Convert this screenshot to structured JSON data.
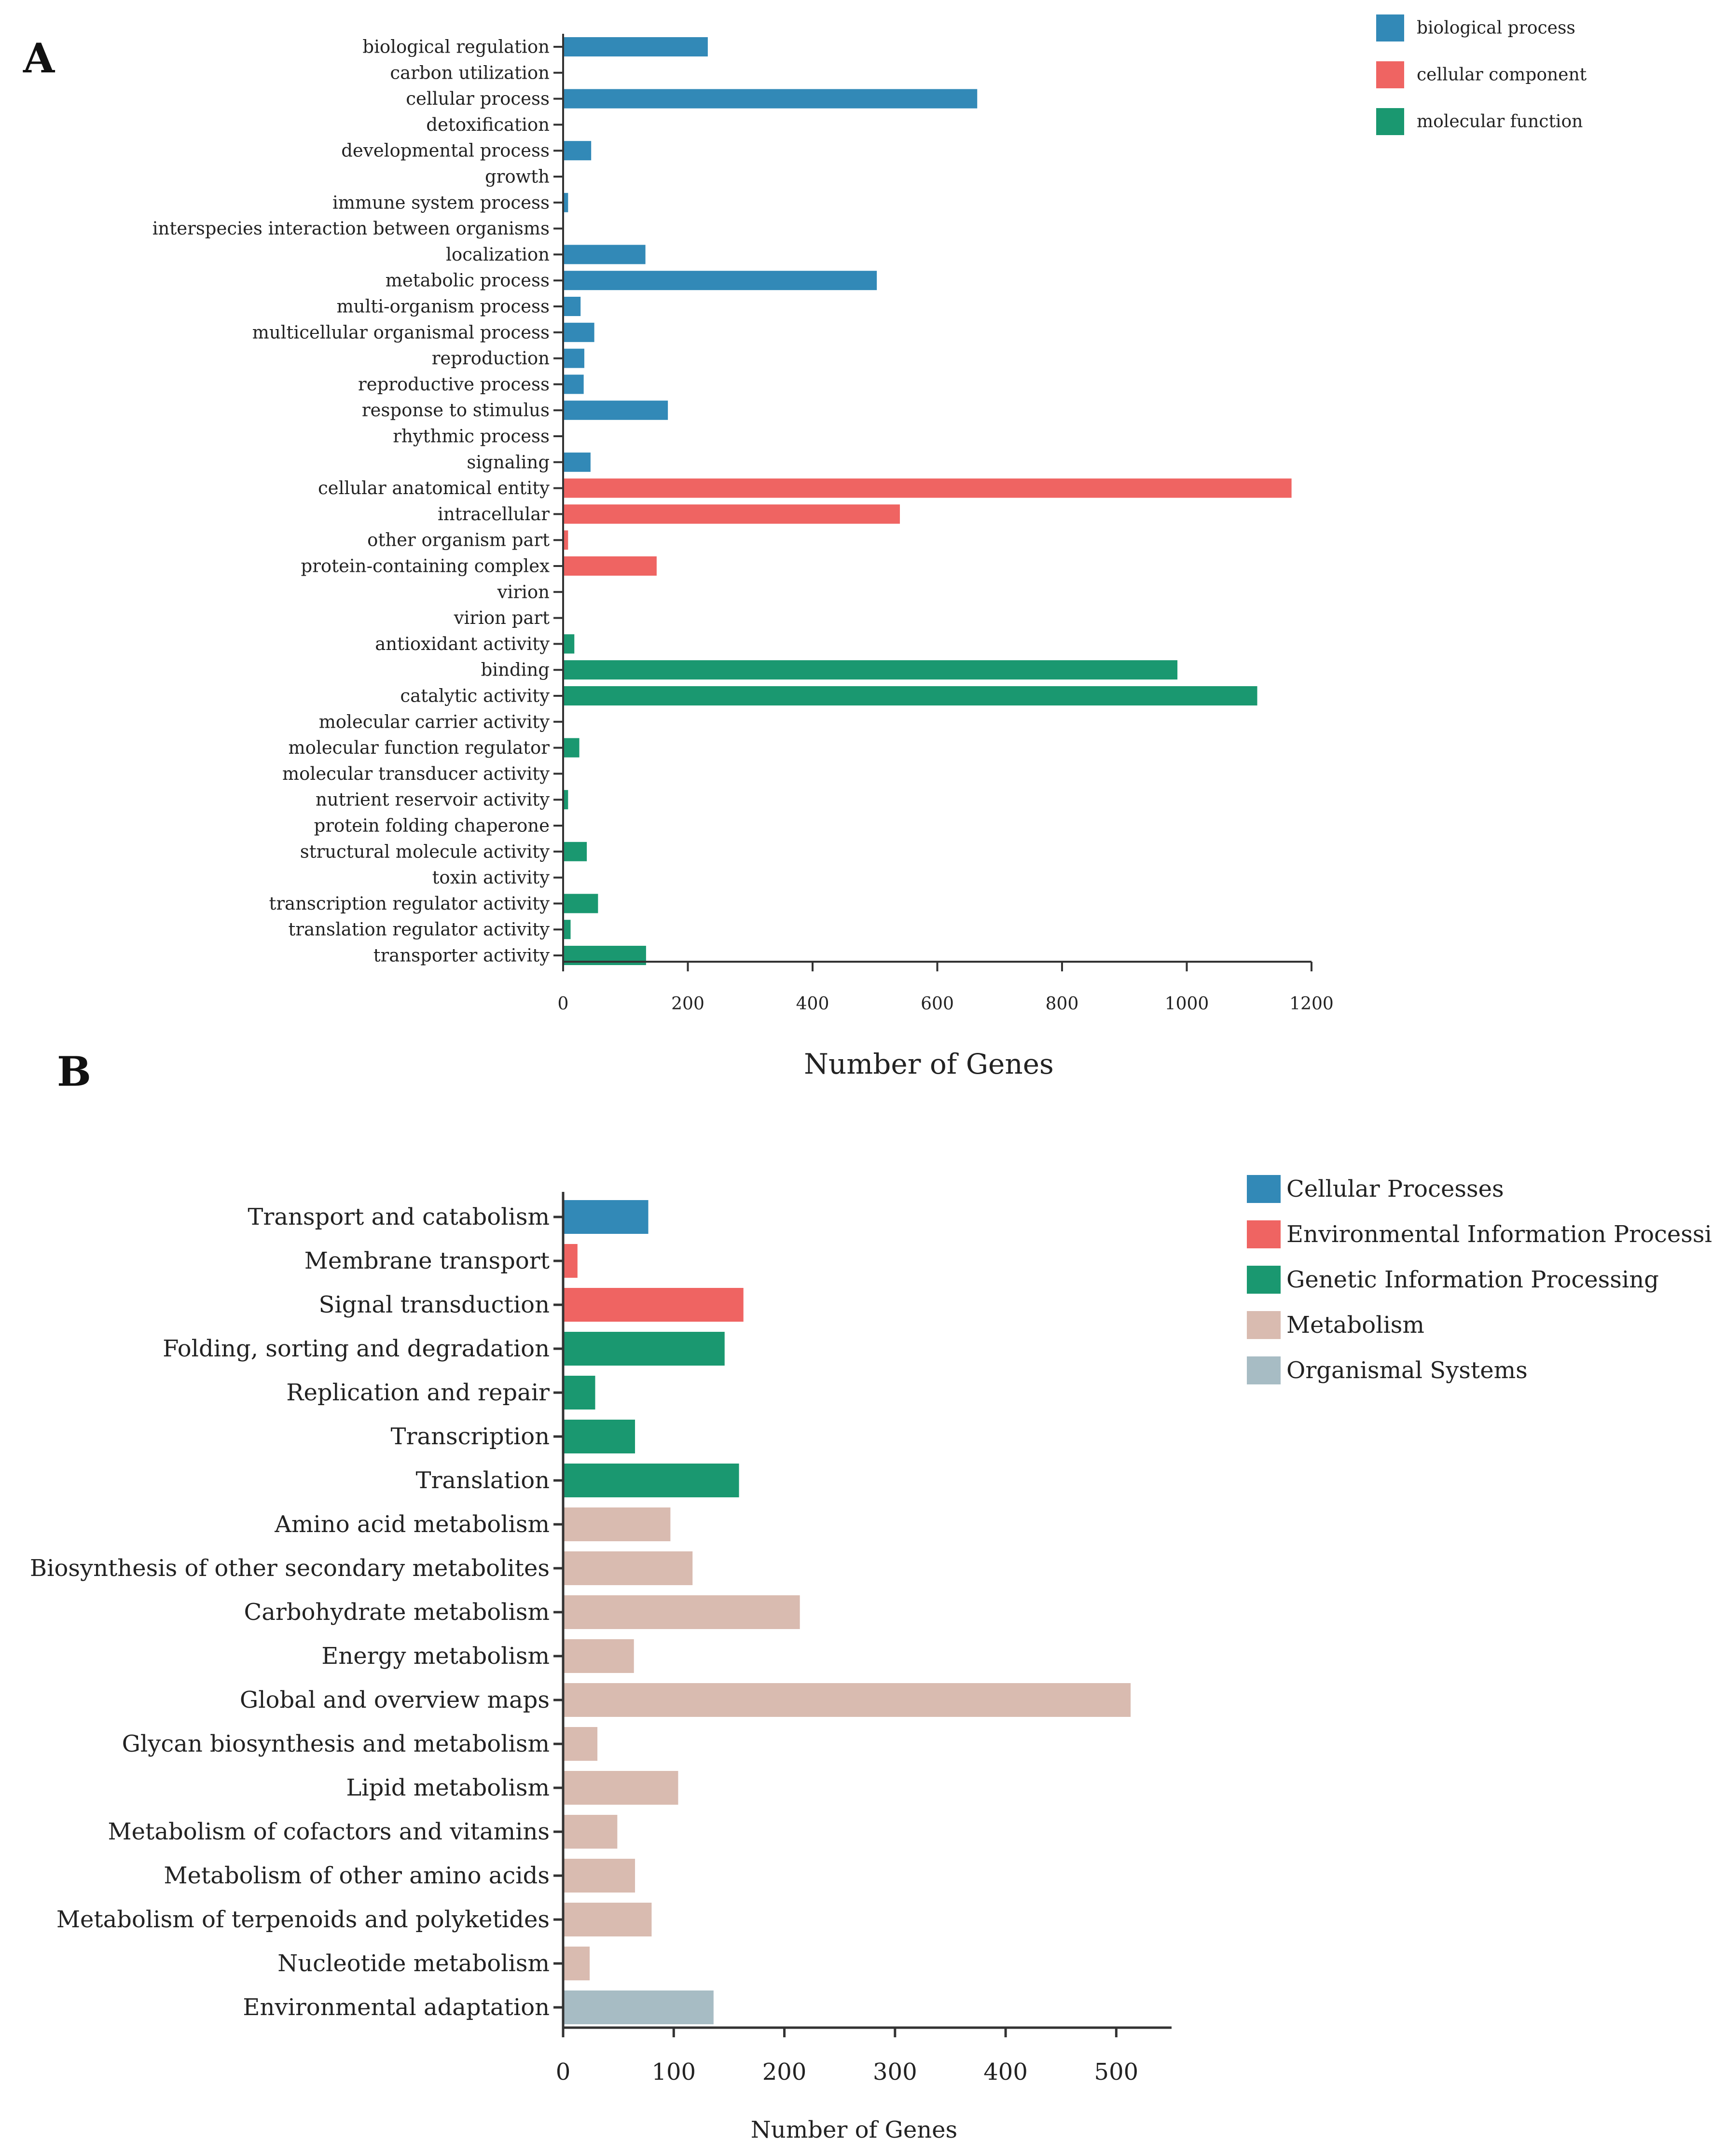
{
  "figure": {
    "panel_a_letter": "A",
    "panel_b_letter": "B"
  },
  "chart_data": [
    {
      "type": "bar",
      "orientation": "horizontal",
      "panel": "A",
      "title": "",
      "xlabel": "Number of Genes",
      "ylabel": "",
      "xlim": [
        0,
        1200
      ],
      "xticks": [
        0,
        200,
        400,
        600,
        800,
        1000,
        1200
      ],
      "legend_position": "top-right",
      "groups": [
        {
          "name": "biological process",
          "color": "#3289b7"
        },
        {
          "name": "cellular component",
          "color": "#ef6462"
        },
        {
          "name": "molecular function",
          "color": "#1a9870"
        }
      ],
      "categories": [
        "biological regulation",
        "carbon utilization",
        "cellular process",
        "detoxification",
        "developmental process",
        "growth",
        "immune system process",
        "interspecies interaction between organisms",
        "localization",
        "metabolic process",
        "multi-organism process",
        "multicellular organismal process",
        "reproduction",
        "reproductive process",
        "response to stimulus",
        "rhythmic process",
        "signaling",
        "cellular anatomical entity",
        "intracellular",
        "other organism part",
        "protein-containing complex",
        "virion",
        "virion part",
        "antioxidant activity",
        "binding",
        "catalytic activity",
        "molecular carrier activity",
        "molecular function regulator",
        "molecular transducer activity",
        "nutrient reservoir activity",
        "protein folding chaperone",
        "structural molecule activity",
        "toxin activity",
        "transcription regulator activity",
        "translation regulator activity",
        "transporter activity"
      ],
      "values": [
        232,
        0,
        664,
        0,
        45,
        0,
        8,
        0,
        132,
        503,
        28,
        50,
        34,
        33,
        168,
        0,
        44,
        1168,
        540,
        8,
        150,
        0,
        0,
        18,
        985,
        1113,
        0,
        26,
        0,
        8,
        0,
        38,
        0,
        56,
        12,
        133
      ],
      "group_index": [
        0,
        0,
        0,
        0,
        0,
        0,
        0,
        0,
        0,
        0,
        0,
        0,
        0,
        0,
        0,
        0,
        0,
        1,
        1,
        1,
        1,
        1,
        1,
        2,
        2,
        2,
        2,
        2,
        2,
        2,
        2,
        2,
        2,
        2,
        2,
        2
      ]
    },
    {
      "type": "bar",
      "orientation": "horizontal",
      "panel": "B",
      "title": "",
      "xlabel": "Number of Genes",
      "ylabel": "",
      "xlim": [
        0,
        550
      ],
      "xticks": [
        0,
        100,
        200,
        300,
        400,
        500
      ],
      "legend_position": "top-right",
      "groups": [
        {
          "name": "Cellular Processes",
          "color": "#3289b7"
        },
        {
          "name": "Environmental Information Processing",
          "color": "#ef6462"
        },
        {
          "name": "Genetic Information Processing",
          "color": "#1a9870"
        },
        {
          "name": "Metabolism",
          "color": "#d9bbb0"
        },
        {
          "name": "Organismal Systems",
          "color": "#a7bcc4"
        }
      ],
      "categories": [
        "Transport and catabolism",
        "Membrane transport",
        "Signal transduction",
        "Folding, sorting and degradation",
        "Replication and repair",
        "Transcription",
        "Translation",
        "Amino acid metabolism",
        "Biosynthesis of other secondary metabolites",
        "Carbohydrate metabolism",
        "Energy metabolism",
        "Global and overview maps",
        "Glycan biosynthesis and metabolism",
        "Lipid metabolism",
        "Metabolism of cofactors and vitamins",
        "Metabolism of other amino acids",
        "Metabolism of terpenoids and polyketides",
        "Nucleotide metabolism",
        "Environmental adaptation"
      ],
      "values": [
        77,
        13,
        163,
        146,
        29,
        65,
        159,
        97,
        117,
        214,
        64,
        513,
        31,
        104,
        49,
        65,
        80,
        24,
        136
      ],
      "group_index": [
        0,
        1,
        1,
        2,
        2,
        2,
        2,
        3,
        3,
        3,
        3,
        3,
        3,
        3,
        3,
        3,
        3,
        3,
        4
      ]
    }
  ]
}
